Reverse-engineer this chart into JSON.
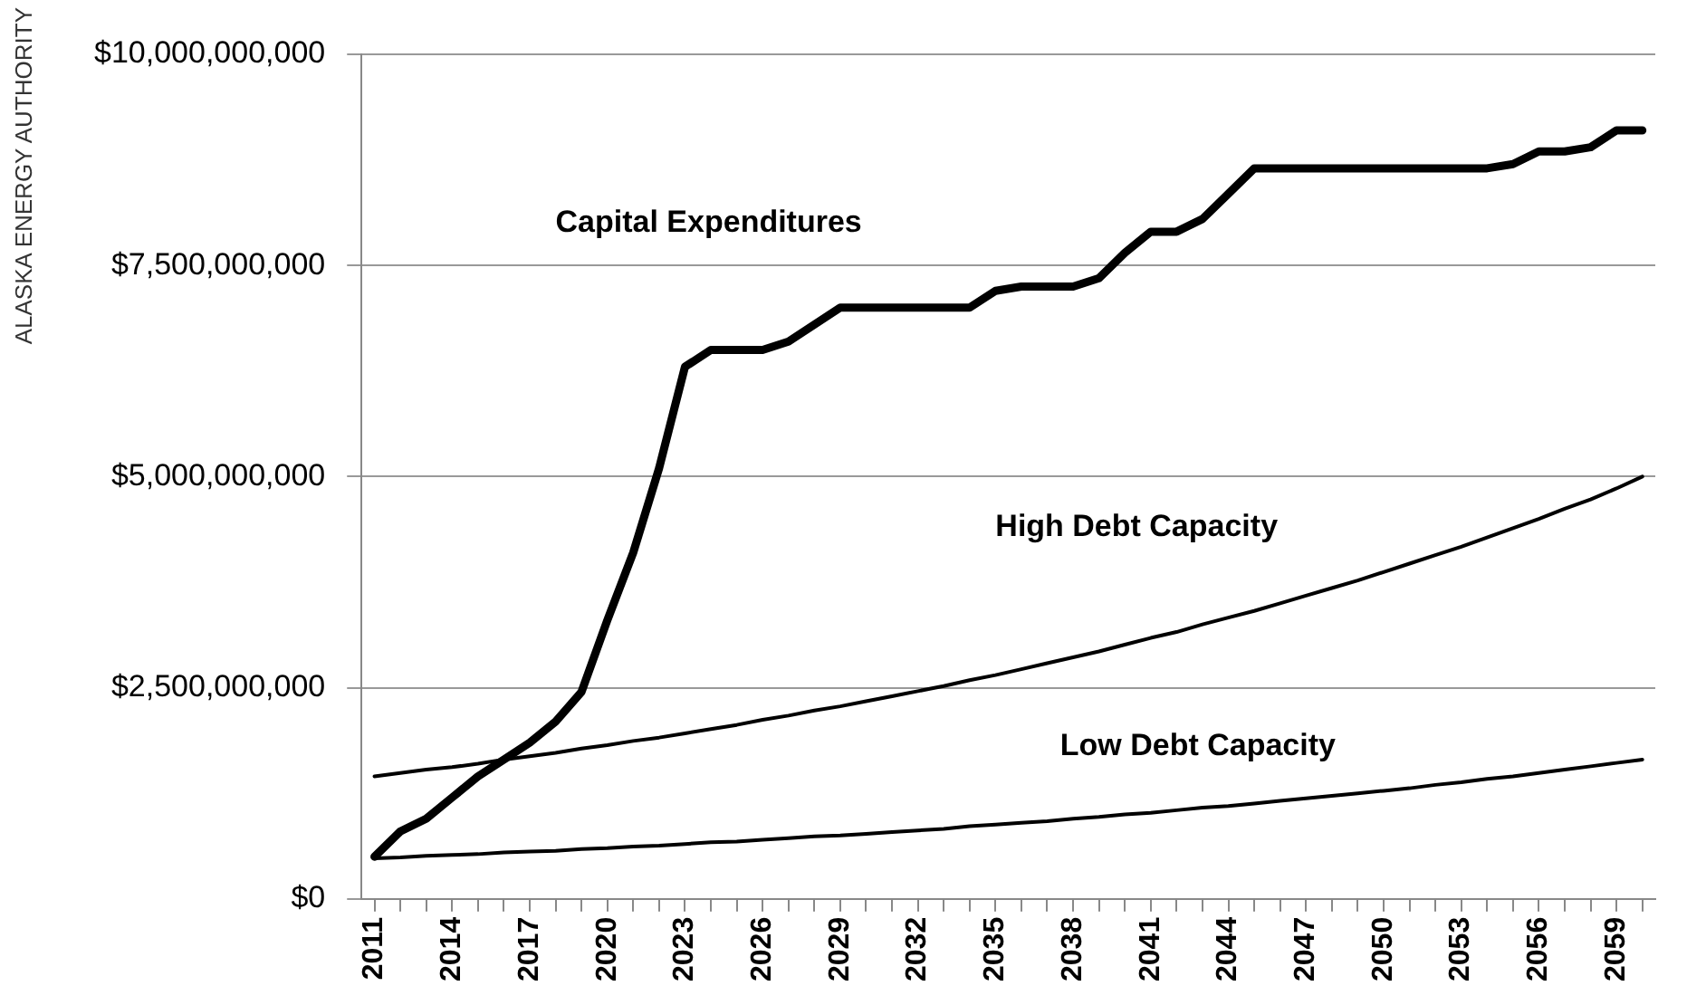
{
  "chart_data": {
    "type": "line",
    "annotations": [
      "ALASKA ENERGY AUTHORITY"
    ],
    "categories": [
      "2011",
      null,
      null,
      "2014",
      null,
      null,
      "2017",
      null,
      null,
      "2020",
      null,
      null,
      "2023",
      null,
      null,
      "2026",
      null,
      null,
      "2029",
      null,
      null,
      "2032",
      null,
      null,
      "2035",
      null,
      null,
      "2038",
      null,
      null,
      "2041",
      null,
      null,
      "2044",
      null,
      null,
      "2047",
      null,
      null,
      "2050",
      null,
      null,
      "2053",
      null,
      null,
      "2056",
      null,
      null,
      "2059",
      null
    ],
    "series": [
      {
        "name": "Capital Expenditures",
        "color": "#000000",
        "values": [
          500000000.0,
          800000000.0,
          950000000.0,
          1200000000.0,
          1450000000.0,
          1650000000.0,
          1850000000.0,
          2100000000.0,
          2450000000.0,
          3300000000.0,
          4100000000.0,
          5100000000.0,
          6300000000.0,
          6500000000.0,
          6500000000.0,
          6500000000.0,
          6600000000.0,
          6800000000.0,
          7000000000.0,
          7000000000.0,
          7000000000.0,
          7000000000.0,
          7000000000.0,
          7000000000.0,
          7200000000.0,
          7250000000.0,
          7250000000.0,
          7250000000.0,
          7350000000.0,
          7650000000.0,
          7900000000.0,
          7900000000.0,
          8050000000.0,
          8350000000.0,
          8650000000.0,
          8650000000.0,
          8650000000.0,
          8650000000.0,
          8650000000.0,
          8650000000.0,
          8650000000.0,
          8650000000.0,
          8650000000.0,
          8650000000.0,
          8700000000.0,
          8850000000.0,
          8850000000.0,
          8900000000.0,
          9100000000.0,
          9100000000.0
        ]
      },
      {
        "name": "High Debt Capacity",
        "color": "#000000",
        "values": [
          1450000000.0,
          1490000000.0,
          1530000000.0,
          1560000000.0,
          1600000000.0,
          1650000000.0,
          1690000000.0,
          1730000000.0,
          1780000000.0,
          1820000000.0,
          1870000000.0,
          1910000000.0,
          1960000000.0,
          2010000000.0,
          2060000000.0,
          2120000000.0,
          2170000000.0,
          2230000000.0,
          2280000000.0,
          2340000000.0,
          2400000000.0,
          2460000000.0,
          2520000000.0,
          2590000000.0,
          2650000000.0,
          2720000000.0,
          2790000000.0,
          2860000000.0,
          2930000000.0,
          3010000000.0,
          3090000000.0,
          3160000000.0,
          3250000000.0,
          3330000000.0,
          3410000000.0,
          3500000000.0,
          3590000000.0,
          3680000000.0,
          3770000000.0,
          3870000000.0,
          3970000000.0,
          4070000000.0,
          4170000000.0,
          4280000000.0,
          4390000000.0,
          4500000000.0,
          4620000000.0,
          4730000000.0,
          4860000000.0,
          5000000000.0
        ]
      },
      {
        "name": "Low Debt Capacity",
        "color": "#000000",
        "values": [
          480000000.0,
          490000000.0,
          510000000.0,
          520000000.0,
          530000000.0,
          550000000.0,
          560000000.0,
          570000000.0,
          590000000.0,
          600000000.0,
          620000000.0,
          630000000.0,
          650000000.0,
          670000000.0,
          680000000.0,
          700000000.0,
          720000000.0,
          740000000.0,
          750000000.0,
          770000000.0,
          790000000.0,
          810000000.0,
          830000000.0,
          860000000.0,
          880000000.0,
          900000000.0,
          920000000.0,
          950000000.0,
          970000000.0,
          1000000000.0,
          1020000000.0,
          1050000000.0,
          1080000000.0,
          1100000000.0,
          1130000000.0,
          1160000000.0,
          1190000000.0,
          1220000000.0,
          1250000000.0,
          1280000000.0,
          1310000000.0,
          1350000000.0,
          1380000000.0,
          1420000000.0,
          1450000000.0,
          1490000000.0,
          1530000000.0,
          1570000000.0,
          1610000000.0,
          1650000000.0
        ]
      }
    ],
    "ylim": [
      0,
      10000000000
    ],
    "yticks": [
      {
        "value": 0,
        "label": "$0"
      },
      {
        "value": 2500000000,
        "label": "$2,500,000,000"
      },
      {
        "value": 5000000000,
        "label": "$5,000,000,000"
      },
      {
        "value": 7500000000,
        "label": "$7,500,000,000"
      },
      {
        "value": 10000000000,
        "label": "$10,000,000,000"
      }
    ],
    "grid": "y",
    "legend": false,
    "marker": "none",
    "line_style": "solid"
  }
}
